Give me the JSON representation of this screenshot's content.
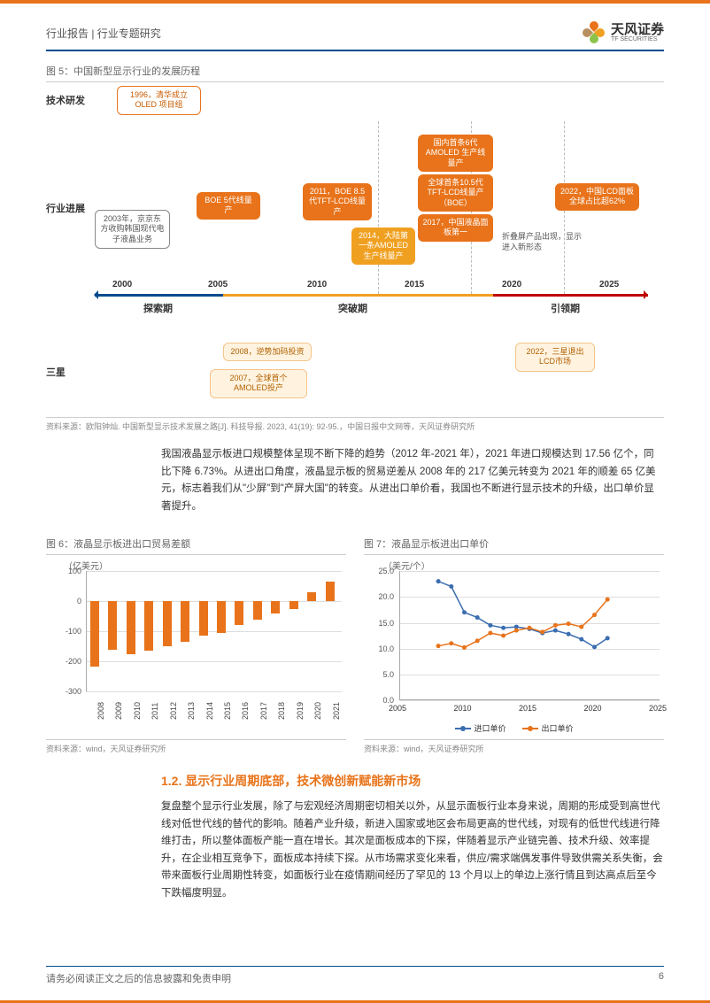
{
  "header": {
    "breadcrumb": "行业报告 | 行业专题研究",
    "company": "天风证券",
    "company_en": "TF SECURITIES"
  },
  "fig5": {
    "title": "图 5：中国新型显示行业的发展历程",
    "row_labels": {
      "tech": "技术研发",
      "industry": "行业进展",
      "samsung": "三星"
    },
    "axis_years": [
      "2000",
      "2005",
      "2010",
      "2015",
      "2020",
      "2025"
    ],
    "periods": [
      {
        "label": "探索期",
        "color": "#004b8d"
      },
      {
        "label": "突破期",
        "color": "#f0a020"
      },
      {
        "label": "引领期",
        "color": "#c00000"
      }
    ],
    "events": {
      "e1996": "1996，清华成立OLED 项目组",
      "e2003": "2003年，京京东方收购韩国现代电子液晶业务",
      "eBOE5": "BOE 5代线量产",
      "e2011": "2011，BOE 8.5代TFT-LCD线量产",
      "e2014": "2014，大陆第一条AMOLED生产线量产",
      "eGN6": "国内首条6代AMOLED 生产线量产",
      "eG105": "全球首条10.5代TFT-LCD线量产（BOE）",
      "e2017": "2017，中国液晶面板第一",
      "eFold": "折叠屏产品出现，显示进入新形态",
      "e2022": "2022，中国LCD面板全球占比超62%",
      "e2007": "2007，全球首个AMOLED投产",
      "e2008": "2008，逆势加码投资",
      "e2022b": "2022，三星退出LCD市场"
    },
    "source": "资料来源：欧阳钟灿. 中国新型显示技术发展之路[J]. 科技导报. 2023, 41(19): 92-95.，中国日报中文网等，天风证券研究所"
  },
  "body_para": "我国液晶显示板进口规模整体呈现不断下降的趋势（2012 年-2021 年），2021 年进口规模达到 17.56 亿个，同比下降 6.73%。从进出口角度，液晶显示板的贸易逆差从 2008 年的 217 亿美元转变为 2021 年的顺差 65 亿美元，标志着我们从\"少屏\"到\"产屏大国\"的转变。从进出口单价看，我国也不断进行显示技术的升级，出口单价显著提升。",
  "fig6": {
    "title": "图 6：液晶显示板进出口贸易差额",
    "y_unit": "（亿美元）",
    "y_ticks": [
      100,
      0,
      -100,
      -200,
      -300
    ],
    "ylim": [
      -300,
      100
    ],
    "years": [
      "2008",
      "2009",
      "2010",
      "2011",
      "2012",
      "2013",
      "2014",
      "2015",
      "2016",
      "2017",
      "2018",
      "2019",
      "2020",
      "2021"
    ],
    "values": [
      -217,
      -162,
      -175,
      -165,
      -150,
      -135,
      -115,
      -105,
      -80,
      -60,
      -40,
      -25,
      30,
      65
    ],
    "bar_color": "#e8731a",
    "source": "资料来源：wind，天风证券研究所"
  },
  "fig7": {
    "title": "图 7：液晶显示板进出口单价",
    "y_unit": "（美元/个）",
    "y_ticks": [
      25,
      20,
      15,
      10,
      5,
      0
    ],
    "ylim": [
      0,
      25
    ],
    "x_ticks": [
      2005,
      2010,
      2015,
      2020,
      2025
    ],
    "xlim": [
      2005,
      2025
    ],
    "series": [
      {
        "name": "进口单价",
        "color": "#3b6db0",
        "points": [
          [
            2008,
            23
          ],
          [
            2009,
            22
          ],
          [
            2010,
            17
          ],
          [
            2011,
            16
          ],
          [
            2012,
            14.5
          ],
          [
            2013,
            14
          ],
          [
            2014,
            14.2
          ],
          [
            2015,
            13.8
          ],
          [
            2016,
            13
          ],
          [
            2017,
            13.5
          ],
          [
            2018,
            12.8
          ],
          [
            2019,
            11.8
          ],
          [
            2020,
            10.3
          ],
          [
            2021,
            12
          ]
        ]
      },
      {
        "name": "出口单价",
        "color": "#e8731a",
        "points": [
          [
            2008,
            10.5
          ],
          [
            2009,
            11
          ],
          [
            2010,
            10.2
          ],
          [
            2011,
            11.5
          ],
          [
            2012,
            13
          ],
          [
            2013,
            12.5
          ],
          [
            2014,
            13.5
          ],
          [
            2015,
            14
          ],
          [
            2016,
            13.2
          ],
          [
            2017,
            14.5
          ],
          [
            2018,
            14.8
          ],
          [
            2019,
            14.2
          ],
          [
            2020,
            16.5
          ],
          [
            2021,
            19.5
          ]
        ]
      }
    ],
    "source": "资料来源：wind，天风证券研究所"
  },
  "section": {
    "title": "1.2. 显示行业周期底部，技术微创新赋能新市场",
    "para": "复盘整个显示行业发展，除了与宏观经济周期密切相关以外，从显示面板行业本身来说，周期的形成受到高世代线对低世代线的替代的影响。随着产业升级，新进入国家或地区会布局更高的世代线，对现有的低世代线进行降维打击，所以整体面板产能一直在增长。其次是面板成本的下探，伴随着显示产业链完善、技术升级、效率提升，在企业相互竞争下，面板成本持续下探。从市场需求变化来看，供应/需求端偶发事件导致供需关系失衡，会带来面板行业周期性转变，如面板行业在疫情期间经历了罕见的 13 个月以上的单边上涨行情且到达高点后至今下跌幅度明显。"
  },
  "footer": {
    "disclaimer": "请务必阅读正文之后的信息披露和免责申明",
    "page_num": "6"
  },
  "colors": {
    "orange": "#e8731a",
    "yellow": "#f0a020",
    "navy": "#004b8d",
    "red": "#c00000",
    "blue_line": "#3b6db0"
  }
}
